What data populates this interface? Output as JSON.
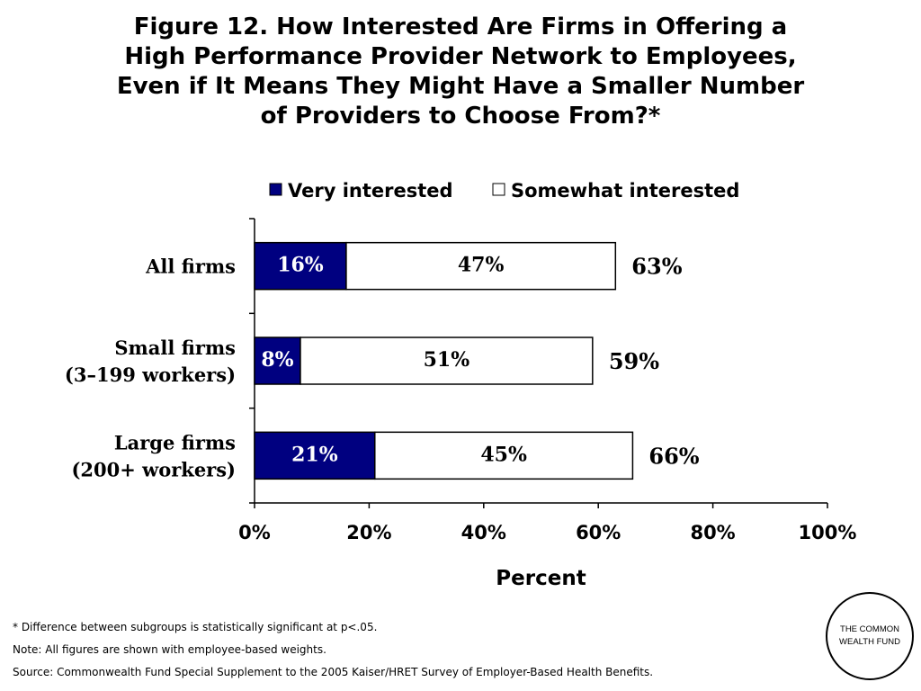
{
  "title_lines": [
    "Figure 12. How Interested Are Firms in Offering a",
    "High Performance Provider Network to Employees,",
    "Even if It Means They Might Have a Smaller Number",
    "of Providers to Choose From?*"
  ],
  "chart_data": {
    "type": "bar",
    "orientation": "horizontal",
    "stacked": true,
    "categories": [
      [
        "All firms"
      ],
      [
        "Small firms",
        "(3–199 workers)"
      ],
      [
        "Large firms",
        "(200+ workers)"
      ]
    ],
    "series": [
      {
        "name": "Very interested",
        "values": [
          16,
          8,
          21
        ],
        "labels": [
          "16%",
          "8%",
          "21%"
        ],
        "color": "#000080"
      },
      {
        "name": "Somewhat interested",
        "values": [
          47,
          51,
          45
        ],
        "labels": [
          "47%",
          "51%",
          "45%"
        ],
        "color": "#ffffff"
      }
    ],
    "totals": [
      63,
      59,
      66
    ],
    "total_labels": [
      "63%",
      "59%",
      "66%"
    ],
    "xlabel": "Percent",
    "xlim": [
      0,
      100
    ],
    "xticks": [
      "0%",
      "20%",
      "40%",
      "60%",
      "80%",
      "100%"
    ],
    "legend": "top"
  },
  "footnotes": [
    "* Difference between subgroups is statistically significant at p<.05.",
    "Note: All figures are shown with employee-based weights.",
    "Source: Commonwealth Fund Special Supplement to the 2005 Kaiser/HRET Survey of Employer-Based Health Benefits."
  ],
  "logo_text": "THE COMMONWEALTH FUND"
}
